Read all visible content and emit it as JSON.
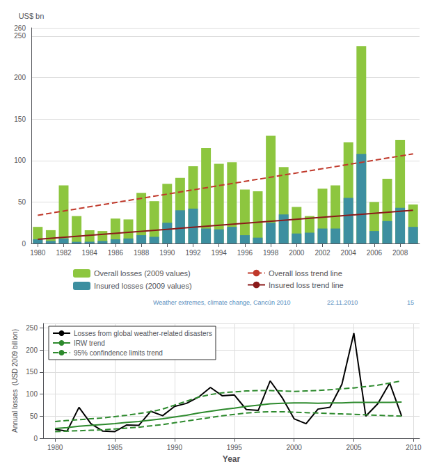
{
  "chart_data": [
    {
      "type": "bar",
      "ylabel": "US$ bn",
      "x": [
        1980,
        1981,
        1982,
        1983,
        1984,
        1985,
        1986,
        1987,
        1988,
        1989,
        1990,
        1991,
        1992,
        1993,
        1994,
        1995,
        1996,
        1997,
        1998,
        1999,
        2000,
        2001,
        2002,
        2003,
        2004,
        2005,
        2006,
        2007,
        2008,
        2009
      ],
      "series": [
        {
          "name": "Overall losses (2009 values)",
          "type": "bar",
          "color": "#8dc63f",
          "values": [
            20,
            16,
            70,
            33,
            16,
            15,
            30,
            29,
            61,
            51,
            72,
            79,
            93,
            115,
            96,
            98,
            65,
            63,
            130,
            92,
            44,
            33,
            66,
            70,
            122,
            238,
            50,
            78,
            125,
            47
          ]
        },
        {
          "name": "Insured losses (2009 values)",
          "type": "bar",
          "color": "#3d8fa0",
          "values": [
            5,
            3,
            6,
            2,
            2,
            3,
            5,
            6,
            10,
            8,
            25,
            40,
            42,
            18,
            17,
            20,
            10,
            7,
            25,
            35,
            12,
            13,
            18,
            18,
            55,
            108,
            15,
            27,
            43,
            20
          ]
        },
        {
          "name": "Overall loss trend line",
          "type": "line",
          "color": "#c0392b",
          "line_style": "dashed",
          "x": [
            1980,
            2009
          ],
          "values": [
            34,
            108
          ]
        },
        {
          "name": "Insured loss trend line",
          "type": "line",
          "color": "#8b1a1a",
          "line_style": "solid",
          "x": [
            1980,
            2009
          ],
          "values": [
            5,
            40
          ]
        }
      ],
      "xlim": [
        1979.5,
        2009.5
      ],
      "xticks": [
        1980,
        1982,
        1984,
        1986,
        1988,
        1990,
        1992,
        1994,
        1996,
        1998,
        2000,
        2002,
        2004,
        2006,
        2008
      ],
      "ylim": [
        0,
        260
      ],
      "yticks": [
        0,
        50,
        100,
        150,
        200,
        250
      ],
      "grid": "y",
      "legend": "bottom",
      "annotations": [
        "Weather extremes, climate change, Cancún 2010",
        "22.11.2010",
        "15"
      ]
    },
    {
      "type": "line",
      "xlabel": "Year",
      "ylabel": "Annual losses  (USD 2009 billion)",
      "x": [
        1980,
        1981,
        1982,
        1983,
        1984,
        1985,
        1986,
        1987,
        1988,
        1989,
        1990,
        1991,
        1992,
        1993,
        1994,
        1995,
        1996,
        1997,
        1998,
        1999,
        2000,
        2001,
        2002,
        2003,
        2004,
        2005,
        2006,
        2007,
        2008,
        2009
      ],
      "series": [
        {
          "name": "Losses from global weather-related disasters",
          "color": "#000000",
          "line_style": "solid",
          "values": [
            20,
            16,
            70,
            33,
            16,
            15,
            30,
            29,
            61,
            51,
            72,
            79,
            93,
            115,
            96,
            98,
            65,
            63,
            130,
            92,
            44,
            33,
            66,
            70,
            122,
            238,
            50,
            78,
            125,
            50
          ]
        },
        {
          "name": "IRW trend",
          "color": "#2d8a2d",
          "line_style": "solid",
          "values": [
            22,
            24,
            27,
            29,
            31,
            33,
            36,
            38,
            41,
            44,
            48,
            52,
            57,
            61,
            65,
            68,
            72,
            75,
            78,
            79,
            80,
            80,
            79,
            80,
            80,
            81,
            81,
            81,
            81,
            82
          ]
        },
        {
          "name": "95% confindence limits trend",
          "color": "#2d8a2d",
          "line_style": "dashed",
          "values": [
            38,
            40,
            42,
            44,
            46,
            49,
            52,
            56,
            60,
            66,
            75,
            84,
            93,
            99,
            103,
            105,
            107,
            108,
            108,
            107,
            106,
            107,
            108,
            110,
            112,
            114,
            117,
            120,
            125,
            130
          ]
        },
        {
          "name": "95% confindence limits trend",
          "color": "#2d8a2d",
          "line_style": "dashed",
          "values": [
            15,
            16,
            17,
            18,
            19,
            21,
            23,
            25,
            28,
            31,
            35,
            39,
            43,
            47,
            51,
            54,
            57,
            59,
            60,
            60,
            59,
            58,
            57,
            56,
            55,
            54,
            53,
            52,
            51,
            50
          ]
        }
      ],
      "xlim": [
        1979,
        2010.5
      ],
      "xticks": [
        1980,
        1985,
        1990,
        1995,
        2000,
        2005,
        2010
      ],
      "ylim": [
        0,
        260
      ],
      "yticks": [
        0,
        50,
        100,
        150,
        200,
        250
      ],
      "grid": true,
      "legend": "upper left"
    }
  ]
}
